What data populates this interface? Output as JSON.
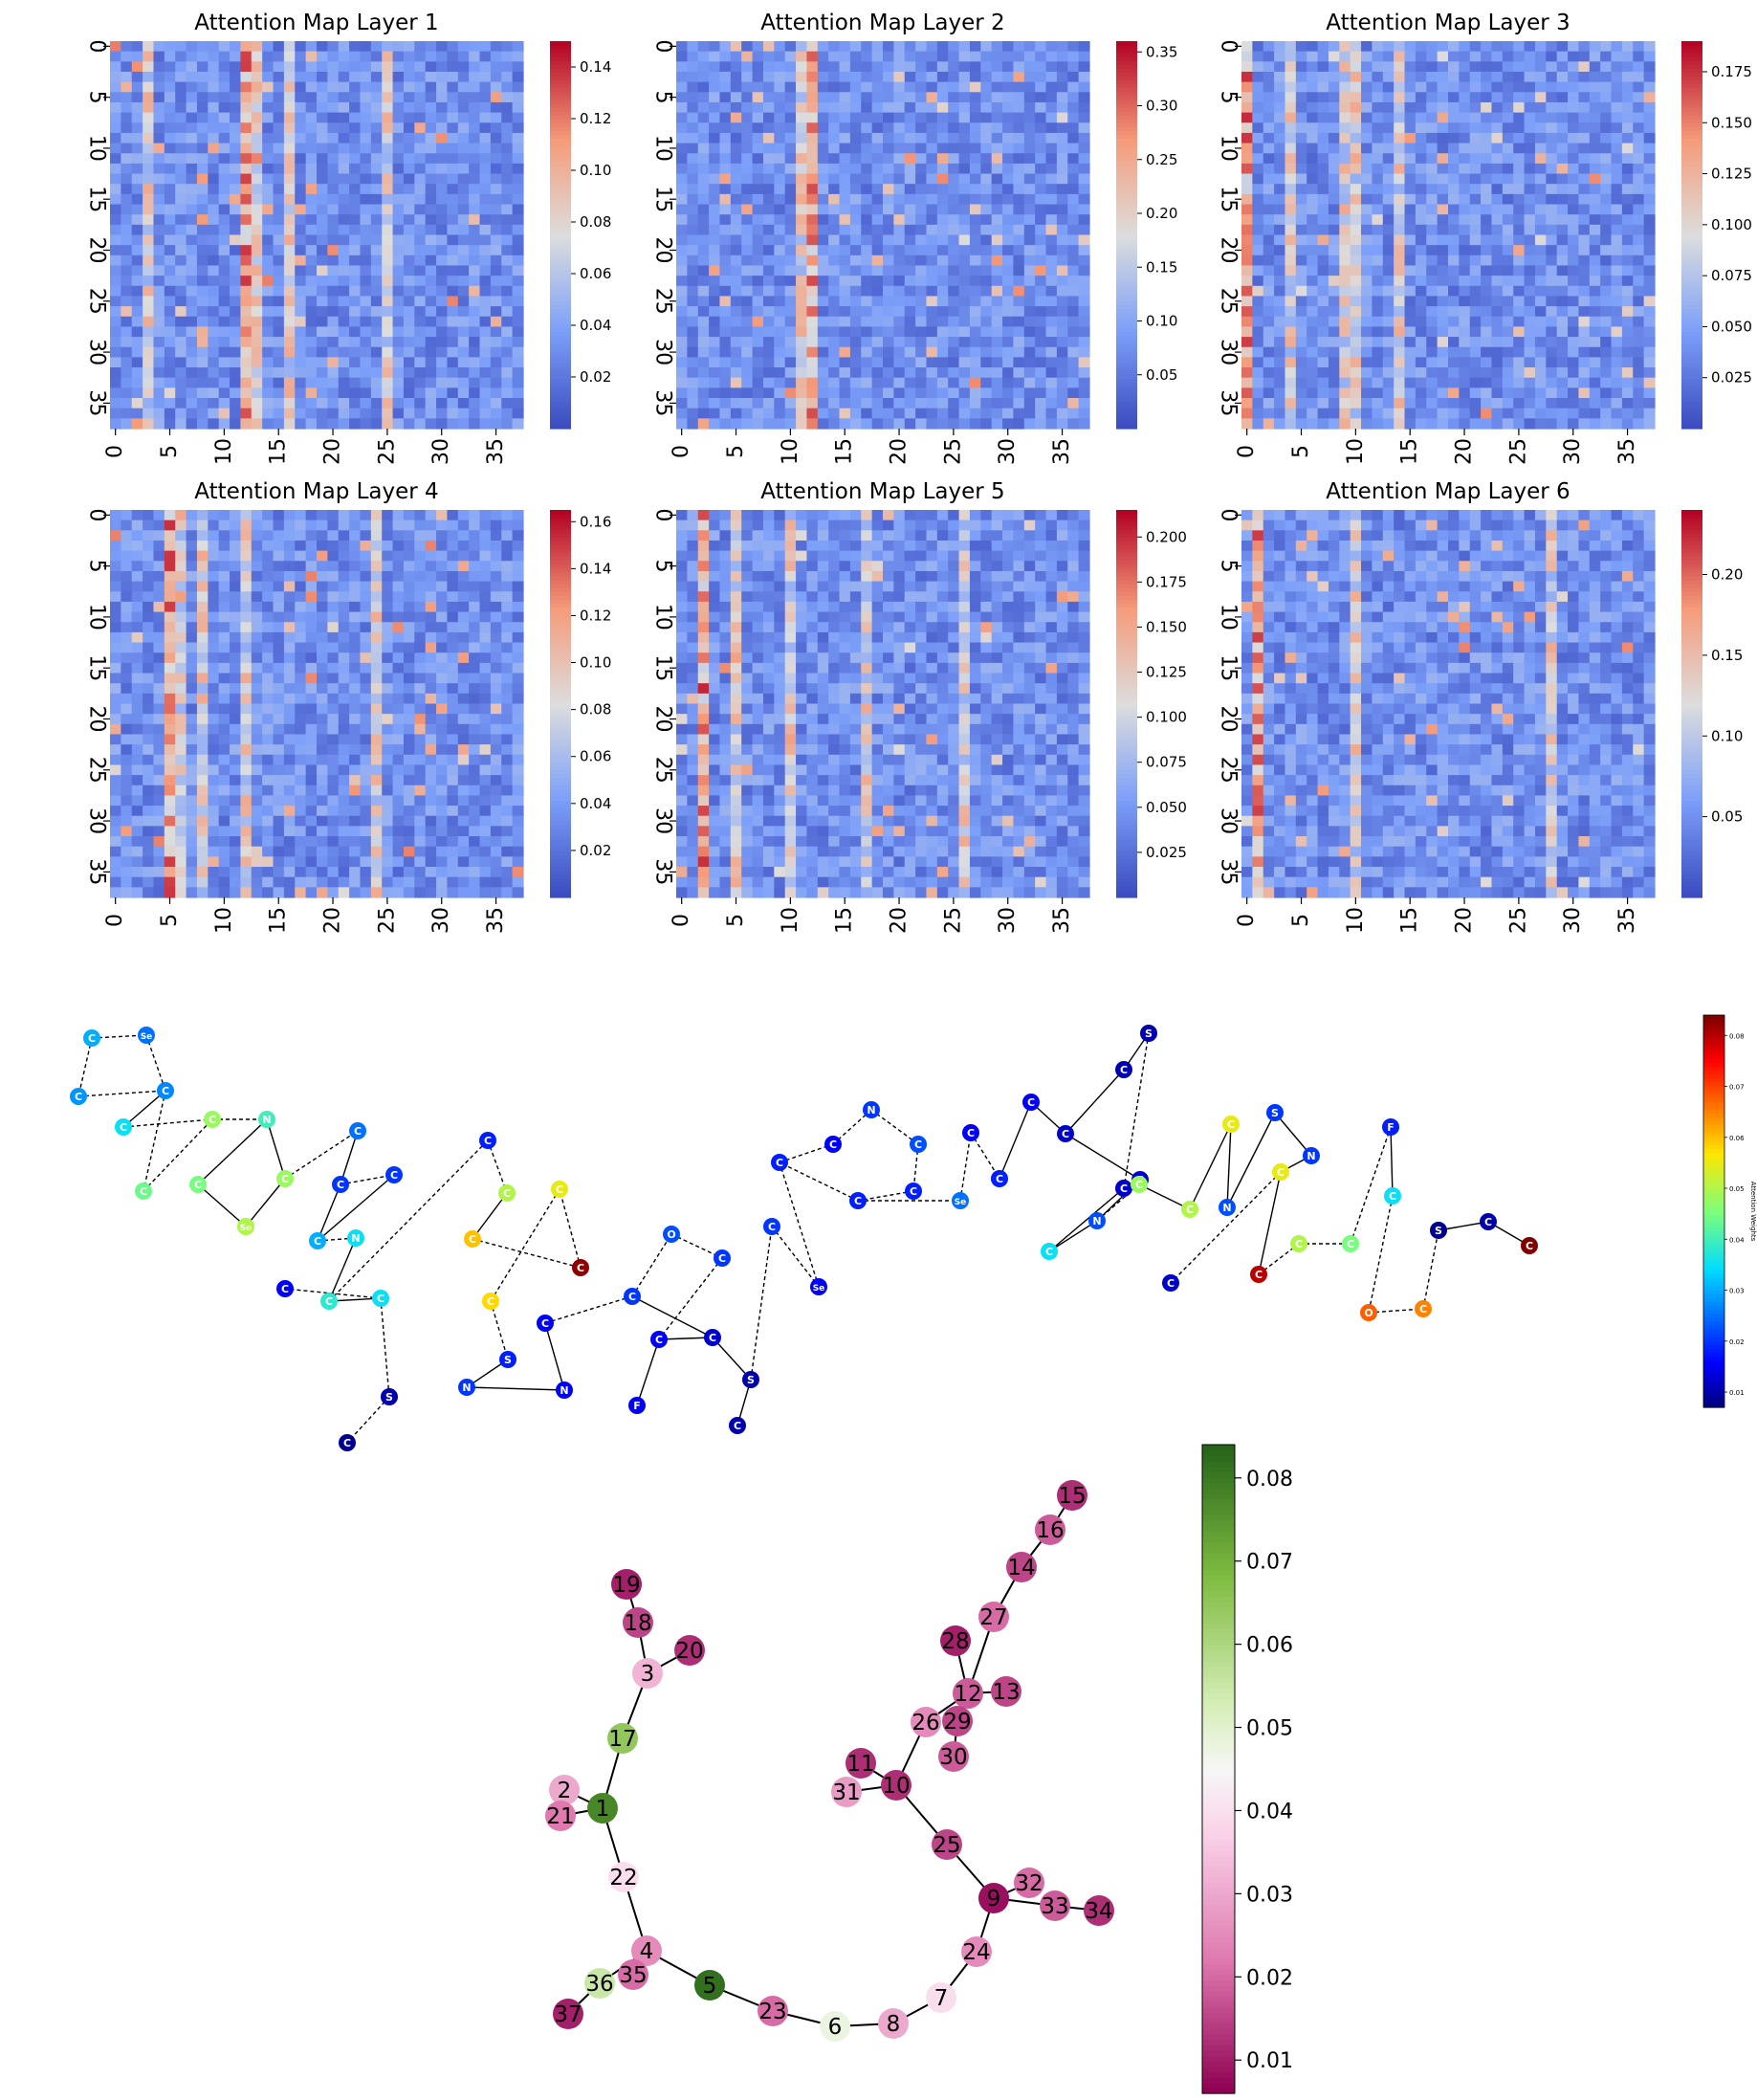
{
  "heatmaps": {
    "size": 38,
    "tick_values": [
      0,
      5,
      10,
      15,
      20,
      25,
      30,
      35
    ],
    "tick_labels": [
      "0",
      "5",
      "10",
      "15",
      "20",
      "25",
      "30",
      "35"
    ],
    "panels": [
      {
        "title": "Attention Map Layer 1",
        "cmap": "coolwarm",
        "vmin": 0.0,
        "vmax": 0.15,
        "colorbar_ticks": [
          "0.02",
          "0.04",
          "0.06",
          "0.08",
          "0.10",
          "0.12",
          "0.14"
        ],
        "colorbar_values": [
          0.02,
          0.04,
          0.06,
          0.08,
          0.1,
          0.12,
          0.14
        ],
        "hot_columns": [
          12,
          13,
          16,
          25,
          3
        ],
        "seed": 11
      },
      {
        "title": "Attention Map Layer 2",
        "cmap": "coolwarm",
        "vmin": 0.0,
        "vmax": 0.36,
        "colorbar_ticks": [
          "0.05",
          "0.10",
          "0.15",
          "0.20",
          "0.25",
          "0.30",
          "0.35"
        ],
        "colorbar_values": [
          0.05,
          0.1,
          0.15,
          0.2,
          0.25,
          0.3,
          0.35
        ],
        "hot_columns": [
          12,
          11
        ],
        "seed": 23
      },
      {
        "title": "Attention Map Layer 3",
        "cmap": "coolwarm",
        "vmin": 0.0,
        "vmax": 0.19,
        "colorbar_ticks": [
          "0.025",
          "0.050",
          "0.075",
          "0.100",
          "0.125",
          "0.150",
          "0.175"
        ],
        "colorbar_values": [
          0.025,
          0.05,
          0.075,
          0.1,
          0.125,
          0.15,
          0.175
        ],
        "hot_columns": [
          0,
          4,
          10,
          14,
          9
        ],
        "seed": 37
      },
      {
        "title": "Attention Map Layer 4",
        "cmap": "coolwarm",
        "vmin": 0.0,
        "vmax": 0.165,
        "colorbar_ticks": [
          "0.02",
          "0.04",
          "0.06",
          "0.08",
          "0.10",
          "0.12",
          "0.14",
          "0.16"
        ],
        "colorbar_values": [
          0.02,
          0.04,
          0.06,
          0.08,
          0.1,
          0.12,
          0.14,
          0.16
        ],
        "hot_columns": [
          5,
          6,
          8,
          12,
          24
        ],
        "seed": 41
      },
      {
        "title": "Attention Map Layer 5",
        "cmap": "coolwarm",
        "vmin": 0.0,
        "vmax": 0.215,
        "colorbar_ticks": [
          "0.025",
          "0.050",
          "0.075",
          "0.100",
          "0.125",
          "0.150",
          "0.175",
          "0.200"
        ],
        "colorbar_values": [
          0.025,
          0.05,
          0.075,
          0.1,
          0.125,
          0.15,
          0.175,
          0.2
        ],
        "hot_columns": [
          2,
          5,
          10,
          17,
          26
        ],
        "seed": 53
      },
      {
        "title": "Attention Map Layer 6",
        "cmap": "coolwarm",
        "vmin": 0.0,
        "vmax": 0.24,
        "colorbar_ticks": [
          "0.05",
          "0.10",
          "0.15",
          "0.20"
        ],
        "colorbar_values": [
          0.05,
          0.1,
          0.15,
          0.2
        ],
        "hot_columns": [
          1,
          10,
          28
        ],
        "seed": 67
      }
    ]
  },
  "molecule": {
    "colorbar_label": "Attention Weights",
    "vmin": 0.007,
    "vmax": 0.084,
    "colorbar_ticks": [
      "0.01",
      "0.02",
      "0.03",
      "0.04",
      "0.05",
      "0.06",
      "0.07",
      "0.08"
    ],
    "colorbar_values": [
      0.01,
      0.02,
      0.03,
      0.04,
      0.05,
      0.06,
      0.07,
      0.08
    ],
    "atoms": [
      {
        "el": "C",
        "w": 0.03
      },
      {
        "el": "Se",
        "w": 0.025
      },
      {
        "el": "C",
        "w": 0.028
      },
      {
        "el": "C",
        "w": 0.027
      },
      {
        "el": "C",
        "w": 0.035
      },
      {
        "el": "C",
        "w": 0.044
      },
      {
        "el": "C",
        "w": 0.048
      },
      {
        "el": "N",
        "w": 0.04
      },
      {
        "el": "C",
        "w": 0.045
      },
      {
        "el": "Se",
        "w": 0.05
      },
      {
        "el": "C",
        "w": 0.048
      },
      {
        "el": "C",
        "w": 0.025
      },
      {
        "el": "C",
        "w": 0.02
      },
      {
        "el": "C",
        "w": 0.02
      },
      {
        "el": "C",
        "w": 0.03
      },
      {
        "el": "N",
        "w": 0.035
      },
      {
        "el": "C",
        "w": 0.038
      },
      {
        "el": "C",
        "w": 0.035
      },
      {
        "el": "C",
        "w": 0.015
      },
      {
        "el": "S",
        "w": 0.01
      },
      {
        "el": "C",
        "w": 0.008
      },
      {
        "el": "C",
        "w": 0.018
      },
      {
        "el": "C",
        "w": 0.05
      },
      {
        "el": "C",
        "w": 0.06
      },
      {
        "el": "C",
        "w": 0.083
      },
      {
        "el": "C",
        "w": 0.055
      },
      {
        "el": "C",
        "w": 0.058
      },
      {
        "el": "S",
        "w": 0.018
      },
      {
        "el": "N",
        "w": 0.02
      },
      {
        "el": "N",
        "w": 0.015
      },
      {
        "el": "C",
        "w": 0.015
      },
      {
        "el": "C",
        "w": 0.02
      },
      {
        "el": "O",
        "w": 0.022
      },
      {
        "el": "C",
        "w": 0.02
      },
      {
        "el": "C",
        "w": 0.015
      },
      {
        "el": "C",
        "w": 0.012
      },
      {
        "el": "F",
        "w": 0.015
      },
      {
        "el": "S",
        "w": 0.01
      },
      {
        "el": "C",
        "w": 0.01
      },
      {
        "el": "C",
        "w": 0.02
      },
      {
        "el": "Se",
        "w": 0.015
      },
      {
        "el": "C",
        "w": 0.018
      },
      {
        "el": "C",
        "w": 0.015
      },
      {
        "el": "N",
        "w": 0.02
      },
      {
        "el": "C",
        "w": 0.022
      },
      {
        "el": "C",
        "w": 0.018
      },
      {
        "el": "C",
        "w": 0.018
      },
      {
        "el": "Se",
        "w": 0.025
      },
      {
        "el": "C",
        "w": 0.015
      },
      {
        "el": "C",
        "w": 0.018
      },
      {
        "el": "C",
        "w": 0.015
      },
      {
        "el": "C",
        "w": 0.012
      },
      {
        "el": "C",
        "w": 0.01
      },
      {
        "el": "S",
        "w": 0.01
      },
      {
        "el": "C",
        "w": 0.012
      },
      {
        "el": "C",
        "w": 0.012
      },
      {
        "el": "N",
        "w": 0.022
      },
      {
        "el": "C",
        "w": 0.035
      },
      {
        "el": "C",
        "w": 0.048
      },
      {
        "el": "C",
        "w": 0.05
      },
      {
        "el": "C",
        "w": 0.055
      },
      {
        "el": "N",
        "w": 0.022
      },
      {
        "el": "S",
        "w": 0.02
      },
      {
        "el": "N",
        "w": 0.02
      },
      {
        "el": "C",
        "w": 0.055
      },
      {
        "el": "C",
        "w": 0.012
      },
      {
        "el": "C",
        "w": 0.08
      },
      {
        "el": "C",
        "w": 0.05
      },
      {
        "el": "C",
        "w": 0.045
      },
      {
        "el": "F",
        "w": 0.018
      },
      {
        "el": "C",
        "w": 0.035
      },
      {
        "el": "O",
        "w": 0.068
      },
      {
        "el": "C",
        "w": 0.065
      },
      {
        "el": "S",
        "w": 0.008
      },
      {
        "el": "C",
        "w": 0.01
      },
      {
        "el": "C",
        "w": 0.085
      }
    ]
  },
  "graph": {
    "vmin": 0.006,
    "vmax": 0.084,
    "colorbar_ticks": [
      "0.01",
      "0.02",
      "0.03",
      "0.04",
      "0.05",
      "0.06",
      "0.07",
      "0.08"
    ],
    "colorbar_values": [
      0.01,
      0.02,
      0.03,
      0.04,
      0.05,
      0.06,
      0.07,
      0.08
    ],
    "nodes": [
      {
        "id": "1",
        "w": 0.078
      },
      {
        "id": "2",
        "w": 0.03
      },
      {
        "id": "3",
        "w": 0.032
      },
      {
        "id": "4",
        "w": 0.025
      },
      {
        "id": "5",
        "w": 0.082
      },
      {
        "id": "6",
        "w": 0.048
      },
      {
        "id": "7",
        "w": 0.04
      },
      {
        "id": "8",
        "w": 0.03
      },
      {
        "id": "9",
        "w": 0.008
      },
      {
        "id": "10",
        "w": 0.012
      },
      {
        "id": "11",
        "w": 0.012
      },
      {
        "id": "12",
        "w": 0.018
      },
      {
        "id": "13",
        "w": 0.015
      },
      {
        "id": "14",
        "w": 0.015
      },
      {
        "id": "15",
        "w": 0.012
      },
      {
        "id": "16",
        "w": 0.018
      },
      {
        "id": "17",
        "w": 0.065
      },
      {
        "id": "18",
        "w": 0.015
      },
      {
        "id": "19",
        "w": 0.01
      },
      {
        "id": "20",
        "w": 0.012
      },
      {
        "id": "21",
        "w": 0.022
      },
      {
        "id": "22",
        "w": 0.04
      },
      {
        "id": "23",
        "w": 0.02
      },
      {
        "id": "24",
        "w": 0.025
      },
      {
        "id": "25",
        "w": 0.015
      },
      {
        "id": "26",
        "w": 0.025
      },
      {
        "id": "27",
        "w": 0.02
      },
      {
        "id": "28",
        "w": 0.01
      },
      {
        "id": "29",
        "w": 0.015
      },
      {
        "id": "30",
        "w": 0.018
      },
      {
        "id": "31",
        "w": 0.028
      },
      {
        "id": "32",
        "w": 0.02
      },
      {
        "id": "33",
        "w": 0.018
      },
      {
        "id": "34",
        "w": 0.012
      },
      {
        "id": "35",
        "w": 0.02
      },
      {
        "id": "36",
        "w": 0.055
      },
      {
        "id": "37",
        "w": 0.01
      }
    ],
    "edges": [
      [
        "1",
        "2"
      ],
      [
        "1",
        "21"
      ],
      [
        "1",
        "17"
      ],
      [
        "1",
        "22"
      ],
      [
        "17",
        "3"
      ],
      [
        "3",
        "18"
      ],
      [
        "18",
        "19"
      ],
      [
        "3",
        "20"
      ],
      [
        "22",
        "4"
      ],
      [
        "4",
        "36"
      ],
      [
        "4",
        "35"
      ],
      [
        "36",
        "37"
      ],
      [
        "4",
        "5"
      ],
      [
        "5",
        "23"
      ],
      [
        "23",
        "6"
      ],
      [
        "6",
        "8"
      ],
      [
        "8",
        "7"
      ],
      [
        "7",
        "24"
      ],
      [
        "24",
        "9"
      ],
      [
        "9",
        "32"
      ],
      [
        "9",
        "33"
      ],
      [
        "33",
        "34"
      ],
      [
        "9",
        "25"
      ],
      [
        "25",
        "10"
      ],
      [
        "10",
        "11"
      ],
      [
        "10",
        "31"
      ],
      [
        "10",
        "26"
      ],
      [
        "26",
        "12"
      ],
      [
        "12",
        "28"
      ],
      [
        "12",
        "13"
      ],
      [
        "12",
        "29"
      ],
      [
        "29",
        "30"
      ],
      [
        "12",
        "27"
      ],
      [
        "27",
        "14"
      ],
      [
        "14",
        "16"
      ],
      [
        "16",
        "15"
      ]
    ]
  }
}
